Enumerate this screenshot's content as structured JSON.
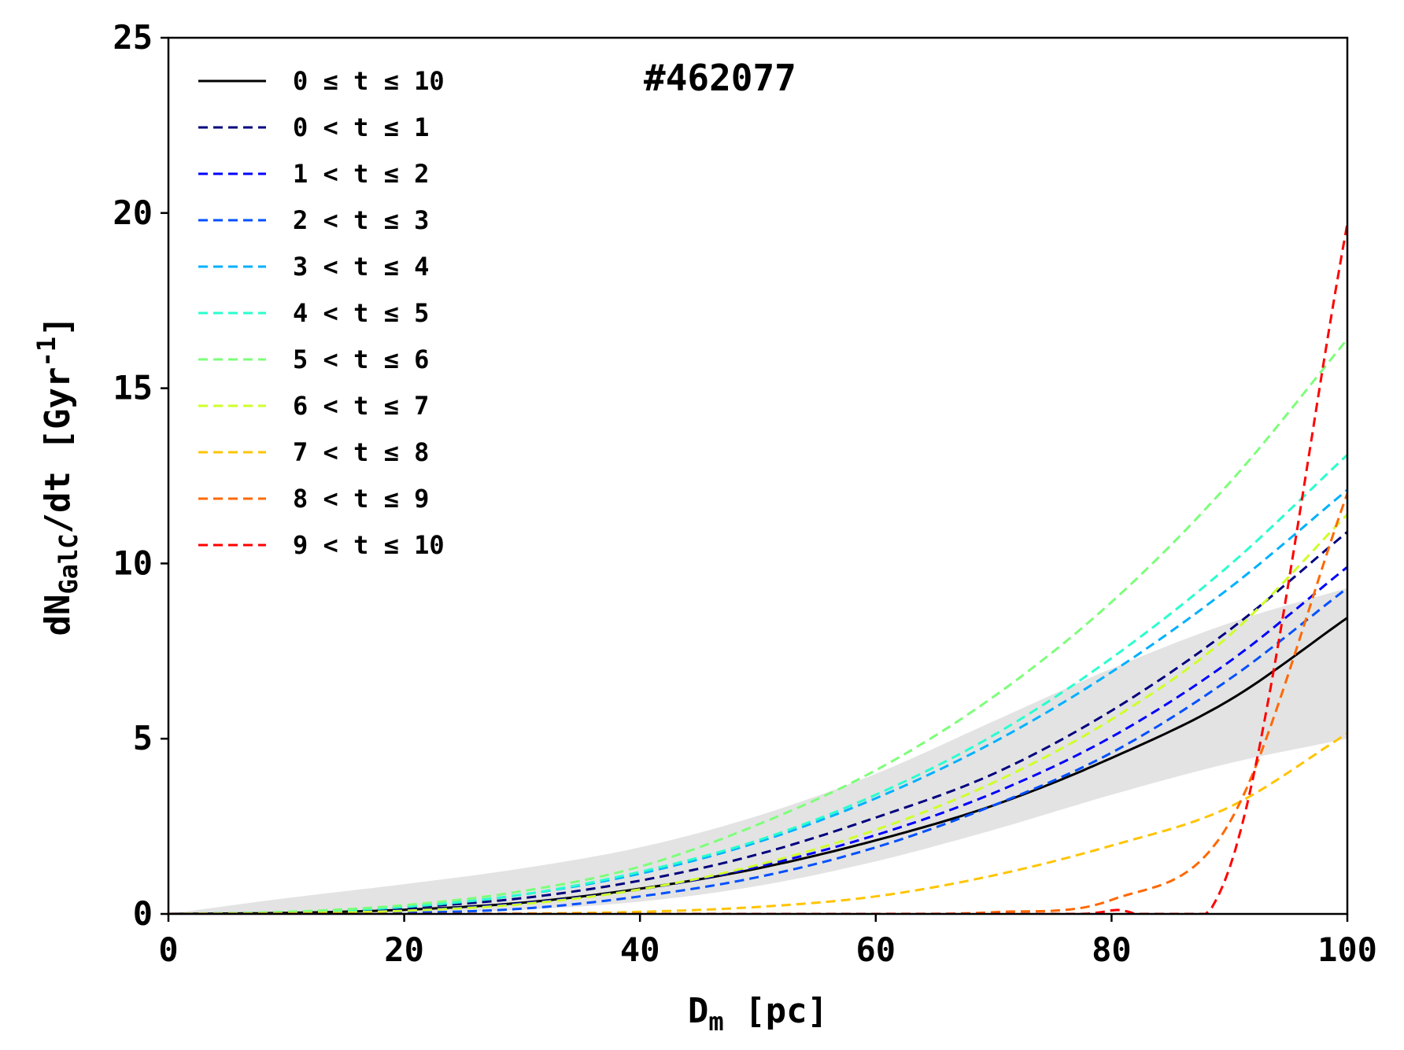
{
  "chart_data": {
    "type": "line",
    "title": "#462077",
    "xlabel": {
      "main": "D",
      "sub": "m",
      "rest": " [pc]"
    },
    "ylabel": {
      "main": "dN",
      "sub": "GalC",
      "rest": "/dt [Gyr",
      "sup": "-1",
      "end": "]"
    },
    "xlim": [
      0,
      100
    ],
    "ylim": [
      0,
      25
    ],
    "xticks": [
      "0",
      "20",
      "40",
      "60",
      "80",
      "100"
    ],
    "yticks": [
      "0",
      "5",
      "10",
      "15",
      "20",
      "25"
    ],
    "x": [
      0,
      10,
      20,
      30,
      40,
      50,
      60,
      70,
      80,
      90,
      100
    ],
    "background_band": {
      "name": "realizations",
      "color": "#d9d9d9",
      "lower": [
        0,
        0,
        0.02,
        0.12,
        0.35,
        0.8,
        1.5,
        2.4,
        3.4,
        4.3,
        5.0
      ],
      "upper": [
        0,
        0.45,
        0.85,
        1.3,
        1.9,
        2.8,
        4.0,
        5.5,
        7.0,
        8.3,
        9.3
      ]
    },
    "series": [
      {
        "name": "0 ≤ t ≤ 10",
        "color": "#000000",
        "style": "solid",
        "values": [
          0,
          0.03,
          0.12,
          0.32,
          0.72,
          1.3,
          2.1,
          3.1,
          4.45,
          6.1,
          8.45
        ]
      },
      {
        "name": "0 < t ≤ 1",
        "color": "#00007f",
        "style": "dashed",
        "values": [
          0,
          0.04,
          0.18,
          0.45,
          0.95,
          1.7,
          2.75,
          4.0,
          5.8,
          8.1,
          10.9
        ]
      },
      {
        "name": "1 < t ≤ 2",
        "color": "#0000ff",
        "style": "dashed",
        "values": [
          0,
          0.02,
          0.1,
          0.3,
          0.7,
          1.35,
          2.25,
          3.45,
          5.05,
          7.2,
          9.9
        ]
      },
      {
        "name": "2 < t ≤ 3",
        "color": "#0050ff",
        "style": "dashed",
        "values": [
          0,
          0.0,
          0.03,
          0.15,
          0.5,
          1.05,
          1.9,
          3.1,
          4.6,
          6.7,
          9.3
        ]
      },
      {
        "name": "3 < t ≤ 4",
        "color": "#00b0ff",
        "style": "dashed",
        "values": [
          0,
          0.05,
          0.2,
          0.55,
          1.15,
          2.05,
          3.3,
          4.9,
          6.9,
          9.3,
          12.1
        ]
      },
      {
        "name": "4 < t ≤ 5",
        "color": "#29ffce",
        "style": "dashed",
        "values": [
          0,
          0.05,
          0.2,
          0.55,
          1.2,
          2.1,
          3.4,
          5.1,
          7.3,
          9.95,
          13.1
        ]
      },
      {
        "name": "5 < t ≤ 6",
        "color": "#7dff7a",
        "style": "dashed",
        "values": [
          0,
          0.06,
          0.25,
          0.65,
          1.35,
          2.55,
          4.1,
          6.2,
          8.9,
          12.3,
          16.4
        ]
      },
      {
        "name": "6 < t ≤ 7",
        "color": "#ceff29",
        "style": "dashed",
        "values": [
          0,
          0.02,
          0.09,
          0.28,
          0.7,
          1.4,
          2.4,
          3.75,
          5.55,
          7.95,
          11.4
        ]
      },
      {
        "name": "7 < t ≤ 8",
        "color": "#ffc400",
        "style": "dashed",
        "values": [
          0,
          0.0,
          0.0,
          0.01,
          0.06,
          0.2,
          0.5,
          1.1,
          1.95,
          3.05,
          5.15
        ]
      },
      {
        "name": "8 < t ≤ 9",
        "color": "#ff6800",
        "style": "dashed",
        "values": [
          0,
          0.0,
          0.0,
          0.0,
          0.0,
          0.0,
          0.0,
          0.05,
          0.4,
          2.6,
          12.0
        ]
      },
      {
        "name": "9 < t ≤ 10",
        "color": "#ff0000",
        "style": "dashed",
        "values": [
          0,
          0.0,
          0.0,
          0.0,
          0.0,
          0.0,
          0.0,
          0.0,
          0.1,
          1.3,
          19.7
        ]
      }
    ],
    "legend_location": "top-left",
    "grid": false
  }
}
